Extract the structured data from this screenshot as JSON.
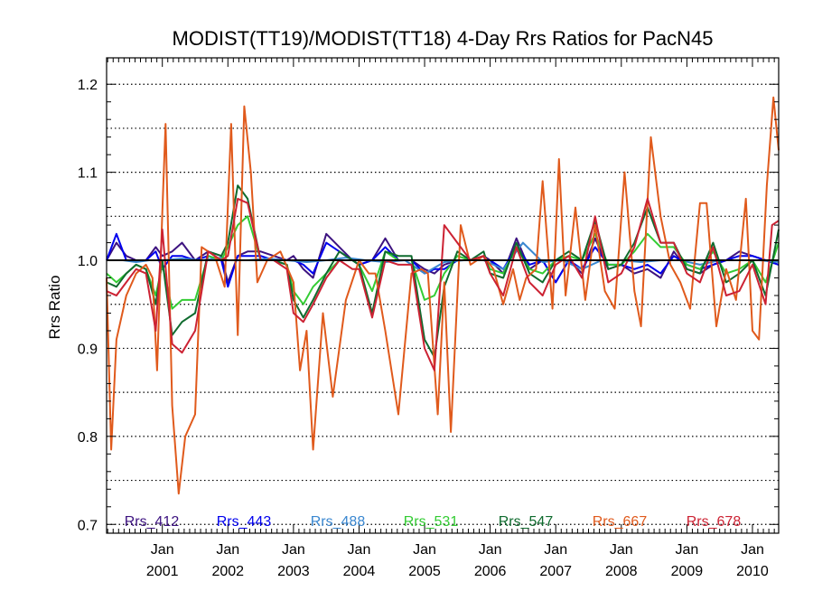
{
  "chart_data": {
    "type": "line",
    "title": "MODIST(TT19)/MODIST(TT18) 4-Day Rrs Ratios for PacN45",
    "xlabel": "",
    "ylabel": "Rrs Ratio",
    "xlim": [
      2000.15,
      2010.4
    ],
    "ylim": [
      0.69,
      1.23
    ],
    "grid": "horizontal dotted",
    "yticks": [
      "0.7",
      "0.8",
      "0.9",
      "1.0",
      "1.1",
      "1.2"
    ],
    "xticks": [
      {
        "month": "Jan",
        "year": "2001"
      },
      {
        "month": "Jan",
        "year": "2002"
      },
      {
        "month": "Jan",
        "year": "2003"
      },
      {
        "month": "Jan",
        "year": "2004"
      },
      {
        "month": "Jan",
        "year": "2005"
      },
      {
        "month": "Jan",
        "year": "2006"
      },
      {
        "month": "Jan",
        "year": "2007"
      },
      {
        "month": "Jan",
        "year": "2008"
      },
      {
        "month": "Jan",
        "year": "2009"
      },
      {
        "month": "Jan",
        "year": "2010"
      }
    ],
    "reference_line": 1.0,
    "legend_position": "bottom",
    "series": [
      {
        "name": "Rrs_412",
        "color": "#3d1380",
        "x": [
          2000.15,
          2000.3,
          2000.45,
          2000.6,
          2000.75,
          2000.9,
          2001.0,
          2001.15,
          2001.3,
          2001.5,
          2001.7,
          2001.9,
          2002.0,
          2002.15,
          2002.3,
          2002.5,
          2002.7,
          2002.9,
          2003.0,
          2003.15,
          2003.3,
          2003.5,
          2003.7,
          2003.9,
          2004.0,
          2004.2,
          2004.4,
          2004.6,
          2004.8,
          2005.0,
          2005.15,
          2005.3,
          2005.5,
          2005.7,
          2005.9,
          2006.0,
          2006.2,
          2006.4,
          2006.6,
          2006.8,
          2007.0,
          2007.2,
          2007.4,
          2007.6,
          2007.8,
          2008.0,
          2008.2,
          2008.4,
          2008.6,
          2008.8,
          2009.0,
          2009.2,
          2009.4,
          2009.6,
          2009.8,
          2010.0,
          2010.2,
          2010.4
        ],
        "y": [
          1.0,
          1.02,
          1.005,
          1.0,
          1.0,
          1.015,
          1.005,
          1.01,
          1.02,
          1.0,
          1.01,
          1.005,
          0.975,
          1.005,
          1.01,
          1.01,
          1.005,
          1.0,
          1.005,
          0.99,
          0.98,
          1.03,
          1.015,
          1.0,
          0.995,
          1.0,
          1.025,
          1.0,
          1.0,
          0.99,
          0.985,
          0.995,
          1.0,
          1.0,
          1.005,
          1.0,
          0.985,
          1.025,
          0.99,
          1.0,
          0.975,
          1.0,
          0.985,
          1.025,
          0.99,
          0.995,
          0.985,
          0.99,
          0.98,
          1.01,
          0.99,
          0.985,
          0.995,
          1.0,
          1.01,
          1.005,
          1.0,
          0.995
        ]
      },
      {
        "name": "Rrs_443",
        "color": "#0000ee",
        "x": [
          2000.15,
          2000.3,
          2000.45,
          2000.6,
          2000.75,
          2000.9,
          2001.0,
          2001.15,
          2001.3,
          2001.5,
          2001.7,
          2001.9,
          2002.0,
          2002.15,
          2002.3,
          2002.5,
          2002.7,
          2002.9,
          2003.0,
          2003.15,
          2003.3,
          2003.5,
          2003.7,
          2003.9,
          2004.0,
          2004.2,
          2004.4,
          2004.6,
          2004.8,
          2005.0,
          2005.15,
          2005.3,
          2005.5,
          2005.7,
          2005.9,
          2006.0,
          2006.2,
          2006.4,
          2006.6,
          2006.8,
          2007.0,
          2007.2,
          2007.4,
          2007.6,
          2007.8,
          2008.0,
          2008.2,
          2008.4,
          2008.6,
          2008.8,
          2009.0,
          2009.2,
          2009.4,
          2009.6,
          2009.8,
          2010.0,
          2010.2,
          2010.4
        ],
        "y": [
          1.0,
          1.03,
          1.0,
          1.0,
          1.0,
          1.01,
          0.99,
          1.005,
          1.005,
          1.0,
          1.005,
          1.0,
          0.97,
          1.005,
          1.005,
          1.005,
          1.0,
          1.0,
          1.0,
          0.995,
          0.985,
          1.02,
          1.01,
          1.0,
          0.995,
          1.0,
          1.015,
          1.0,
          1.0,
          0.985,
          0.99,
          0.99,
          1.0,
          1.0,
          1.0,
          1.0,
          0.99,
          1.015,
          0.995,
          1.0,
          0.975,
          1.0,
          0.99,
          1.015,
          0.995,
          0.995,
          0.99,
          0.995,
          0.985,
          1.005,
          0.995,
          0.99,
          0.995,
          1.0,
          1.005,
          1.005,
          1.0,
          0.995
        ]
      },
      {
        "name": "Rrs_488",
        "color": "#3a87d0",
        "x": [
          2000.15,
          2000.4,
          2000.6,
          2000.8,
          2001.0,
          2001.3,
          2001.6,
          2001.9,
          2002.0,
          2002.3,
          2002.6,
          2002.9,
          2003.2,
          2003.5,
          2003.8,
          2004.1,
          2004.4,
          2004.7,
          2005.0,
          2005.3,
          2005.6,
          2005.9,
          2006.2,
          2006.5,
          2006.8,
          2007.1,
          2007.4,
          2007.7,
          2008.0,
          2008.3,
          2008.6,
          2008.9,
          2009.2,
          2009.5,
          2009.8,
          2010.1,
          2010.4
        ],
        "y": [
          1.0,
          1.0,
          0.998,
          1.0,
          1.0,
          1.002,
          1.0,
          1.003,
          1.0,
          1.0,
          1.002,
          1.0,
          0.998,
          1.0,
          1.003,
          1.0,
          0.998,
          1.0,
          0.985,
          0.998,
          1.0,
          1.0,
          0.99,
          1.02,
          0.998,
          1.0,
          0.99,
          1.0,
          1.0,
          0.998,
          1.0,
          1.0,
          0.995,
          1.0,
          1.0,
          1.0,
          0.998
        ]
      },
      {
        "name": "Rrs_531",
        "color": "#33cc33",
        "x": [
          2000.15,
          2000.3,
          2000.45,
          2000.6,
          2000.75,
          2000.9,
          2001.0,
          2001.15,
          2001.3,
          2001.5,
          2001.7,
          2001.9,
          2002.0,
          2002.15,
          2002.3,
          2002.5,
          2002.7,
          2002.9,
          2003.0,
          2003.15,
          2003.3,
          2003.5,
          2003.7,
          2003.9,
          2004.0,
          2004.2,
          2004.4,
          2004.6,
          2004.8,
          2005.0,
          2005.15,
          2005.3,
          2005.5,
          2005.7,
          2005.9,
          2006.0,
          2006.2,
          2006.4,
          2006.6,
          2006.8,
          2007.0,
          2007.2,
          2007.4,
          2007.6,
          2007.8,
          2008.0,
          2008.2,
          2008.4,
          2008.6,
          2008.8,
          2009.0,
          2009.2,
          2009.4,
          2009.6,
          2009.8,
          2010.0,
          2010.2,
          2010.4
        ],
        "y": [
          0.985,
          0.975,
          0.985,
          0.995,
          0.99,
          0.96,
          0.995,
          0.945,
          0.955,
          0.955,
          1.005,
          1.0,
          1.015,
          1.04,
          1.05,
          1.0,
          1.0,
          0.995,
          0.965,
          0.95,
          0.97,
          0.985,
          1.0,
          1.0,
          0.995,
          0.965,
          1.01,
          1.0,
          1.0,
          0.955,
          0.96,
          0.985,
          1.005,
          1.0,
          1.005,
          0.99,
          0.985,
          1.015,
          0.99,
          0.985,
          1.0,
          1.005,
          1.0,
          1.03,
          0.995,
          0.995,
          1.01,
          1.03,
          1.015,
          1.015,
          0.995,
          0.99,
          1.01,
          0.985,
          0.99,
          1.0,
          0.975,
          1.02
        ]
      },
      {
        "name": "Rrs_547",
        "color": "#0f6b2e",
        "x": [
          2000.15,
          2000.3,
          2000.45,
          2000.6,
          2000.75,
          2000.9,
          2001.0,
          2001.15,
          2001.3,
          2001.5,
          2001.7,
          2001.9,
          2002.0,
          2002.15,
          2002.3,
          2002.5,
          2002.7,
          2002.9,
          2003.0,
          2003.15,
          2003.3,
          2003.5,
          2003.7,
          2003.9,
          2004.0,
          2004.2,
          2004.4,
          2004.6,
          2004.8,
          2005.0,
          2005.15,
          2005.3,
          2005.5,
          2005.7,
          2005.9,
          2006.0,
          2006.2,
          2006.4,
          2006.6,
          2006.8,
          2007.0,
          2007.2,
          2007.4,
          2007.6,
          2007.8,
          2008.0,
          2008.2,
          2008.4,
          2008.6,
          2008.8,
          2009.0,
          2009.2,
          2009.4,
          2009.6,
          2009.8,
          2010.0,
          2010.2,
          2010.4
        ],
        "y": [
          0.975,
          0.97,
          0.985,
          0.995,
          0.99,
          0.95,
          1.0,
          0.915,
          0.93,
          0.94,
          1.01,
          1.005,
          1.02,
          1.085,
          1.07,
          1.0,
          1.0,
          0.995,
          0.955,
          0.935,
          0.955,
          0.985,
          1.01,
          1.0,
          0.995,
          0.94,
          1.01,
          1.005,
          1.005,
          0.91,
          0.89,
          0.97,
          1.01,
          1.0,
          1.01,
          0.985,
          0.98,
          1.02,
          0.985,
          0.975,
          1.0,
          1.01,
          1.0,
          1.045,
          0.99,
          0.995,
          1.02,
          1.06,
          1.02,
          1.02,
          0.99,
          0.985,
          1.02,
          0.975,
          0.985,
          1.0,
          0.96,
          1.035
        ]
      },
      {
        "name": "Rrs_667",
        "color": "#e05a1c",
        "x": [
          2000.15,
          2000.22,
          2000.3,
          2000.45,
          2000.6,
          2000.75,
          2000.85,
          2000.92,
          2001.0,
          2001.05,
          2001.15,
          2001.25,
          2001.35,
          2001.5,
          2001.6,
          2001.8,
          2001.95,
          2002.05,
          2002.15,
          2002.25,
          2002.35,
          2002.45,
          2002.6,
          2002.8,
          2003.0,
          2003.1,
          2003.2,
          2003.3,
          2003.45,
          2003.6,
          2003.8,
          2004.0,
          2004.15,
          2004.25,
          2004.4,
          2004.6,
          2004.8,
          2004.95,
          2005.05,
          2005.2,
          2005.3,
          2005.4,
          2005.55,
          2005.7,
          2005.9,
          2006.05,
          2006.2,
          2006.35,
          2006.45,
          2006.55,
          2006.7,
          2006.8,
          2006.95,
          2007.05,
          2007.15,
          2007.3,
          2007.45,
          2007.6,
          2007.75,
          2007.9,
          2008.05,
          2008.2,
          2008.3,
          2008.45,
          2008.6,
          2008.75,
          2008.9,
          2009.05,
          2009.2,
          2009.3,
          2009.45,
          2009.6,
          2009.75,
          2009.9,
          2010.0,
          2010.1,
          2010.22,
          2010.32,
          2010.4
        ],
        "y": [
          0.98,
          0.785,
          0.91,
          0.96,
          0.985,
          0.995,
          0.98,
          0.875,
          1.055,
          1.155,
          0.835,
          0.735,
          0.8,
          0.825,
          1.015,
          1.005,
          0.97,
          1.155,
          0.915,
          1.175,
          1.1,
          0.975,
          1.0,
          1.01,
          0.975,
          0.875,
          0.92,
          0.785,
          0.94,
          0.845,
          0.955,
          1.0,
          0.985,
          0.985,
          0.92,
          0.825,
          0.985,
          0.99,
          0.985,
          0.825,
          0.975,
          0.805,
          1.04,
          0.995,
          1.005,
          0.99,
          0.95,
          0.99,
          0.955,
          0.98,
          0.99,
          1.09,
          0.945,
          1.115,
          0.96,
          1.06,
          0.955,
          1.04,
          0.965,
          0.945,
          1.1,
          0.965,
          0.925,
          1.14,
          1.05,
          0.995,
          0.975,
          0.945,
          1.065,
          1.065,
          0.925,
          0.99,
          0.955,
          1.07,
          0.92,
          0.91,
          1.085,
          1.185,
          1.125
        ]
      },
      {
        "name": "Rrs_678",
        "color": "#cc2233",
        "x": [
          2000.15,
          2000.3,
          2000.45,
          2000.6,
          2000.75,
          2000.9,
          2001.0,
          2001.15,
          2001.3,
          2001.5,
          2001.7,
          2001.9,
          2002.0,
          2002.15,
          2002.3,
          2002.5,
          2002.7,
          2002.9,
          2003.0,
          2003.15,
          2003.3,
          2003.5,
          2003.7,
          2003.9,
          2004.0,
          2004.2,
          2004.4,
          2004.6,
          2004.8,
          2005.0,
          2005.15,
          2005.3,
          2005.5,
          2005.7,
          2005.9,
          2006.0,
          2006.2,
          2006.4,
          2006.6,
          2006.8,
          2007.0,
          2007.2,
          2007.4,
          2007.6,
          2007.8,
          2008.0,
          2008.2,
          2008.4,
          2008.6,
          2008.8,
          2009.0,
          2009.2,
          2009.4,
          2009.6,
          2009.8,
          2010.0,
          2010.2,
          2010.3,
          2010.4
        ],
        "y": [
          0.965,
          0.96,
          0.975,
          0.99,
          0.985,
          0.92,
          1.035,
          0.905,
          0.895,
          0.92,
          1.01,
          1.0,
          1.005,
          1.07,
          1.065,
          1.0,
          1.0,
          0.99,
          0.94,
          0.93,
          0.95,
          0.98,
          1.0,
          0.99,
          0.99,
          0.935,
          1.0,
          0.995,
          0.995,
          0.9,
          0.875,
          1.04,
          1.02,
          1.0,
          1.005,
          0.985,
          0.96,
          1.015,
          0.975,
          0.96,
          0.995,
          1.005,
          0.98,
          1.05,
          0.975,
          0.985,
          1.015,
          1.07,
          1.02,
          1.02,
          0.985,
          0.975,
          1.015,
          0.96,
          0.965,
          0.995,
          0.95,
          1.04,
          1.045
        ]
      }
    ]
  }
}
